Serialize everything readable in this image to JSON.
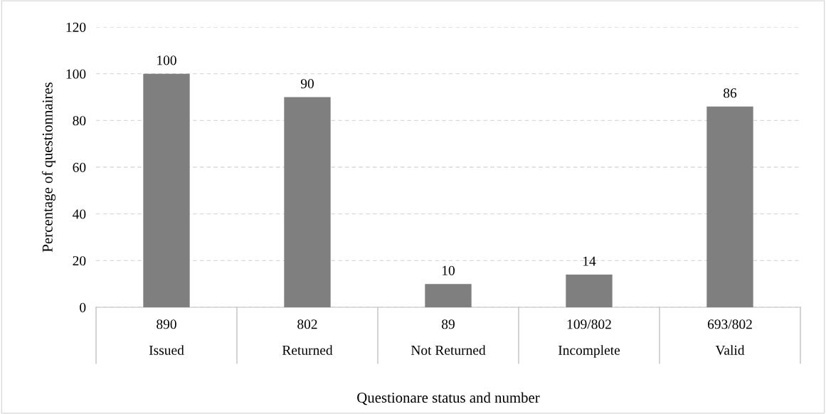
{
  "chart_data": {
    "type": "bar",
    "categories": [
      "890\nIssued",
      "802\nReturned",
      "89\nNot Returned",
      "109/802\nIncomplete",
      "693/802\nValid"
    ],
    "values": [
      100,
      90,
      10,
      14,
      86
    ],
    "color": "#7f7f7f",
    "ylabel": "Percentage of questionnaires",
    "xlabel": "Questionare status and number",
    "ylim": [
      0,
      120
    ],
    "yticks": [
      0,
      20,
      40,
      60,
      80,
      100,
      120
    ],
    "grid": "y",
    "data_labels": true
  }
}
